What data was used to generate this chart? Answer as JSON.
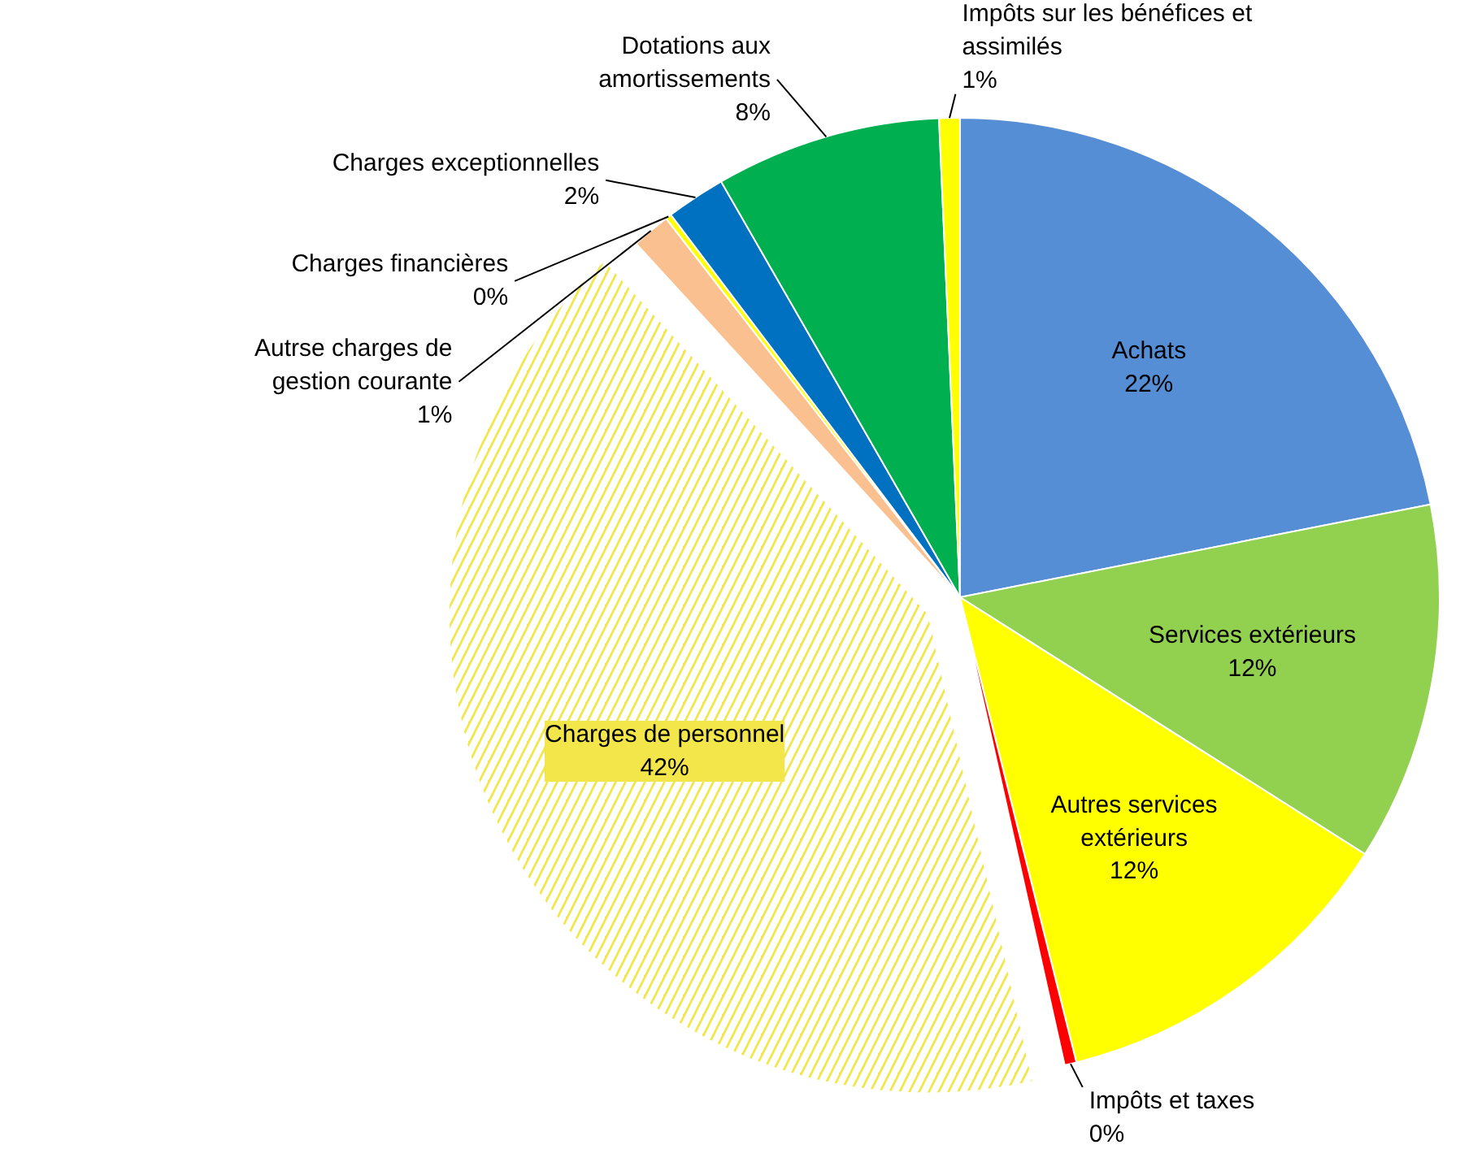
{
  "chart_data": {
    "type": "pie",
    "categories": [
      "Achats",
      "Services extérieurs",
      "Autres services extérieurs",
      "Impôts et taxes",
      "Charges de personnel",
      "Autrse charges de gestion courante",
      "Charges financières",
      "Charges exceptionnelles",
      "Dotations aux amortissements",
      "Impôts sur les bénéfices et assimilés"
    ],
    "values": [
      21.9,
      12.1,
      12.1,
      0.4,
      41.7,
      1.3,
      0.2,
      2.0,
      7.6,
      0.7
    ],
    "value_labels": [
      "22%",
      "12%",
      "12%",
      "0%",
      "42%",
      "1%",
      "0%",
      "2%",
      "8%",
      "1%"
    ],
    "colors": [
      "#558ed5",
      "#92d050",
      "#ffff00",
      "#ff0000",
      "#f2e64a",
      "#fac090",
      "#ffff00",
      "#0070c0",
      "#00b050",
      "#ffff00"
    ]
  }
}
